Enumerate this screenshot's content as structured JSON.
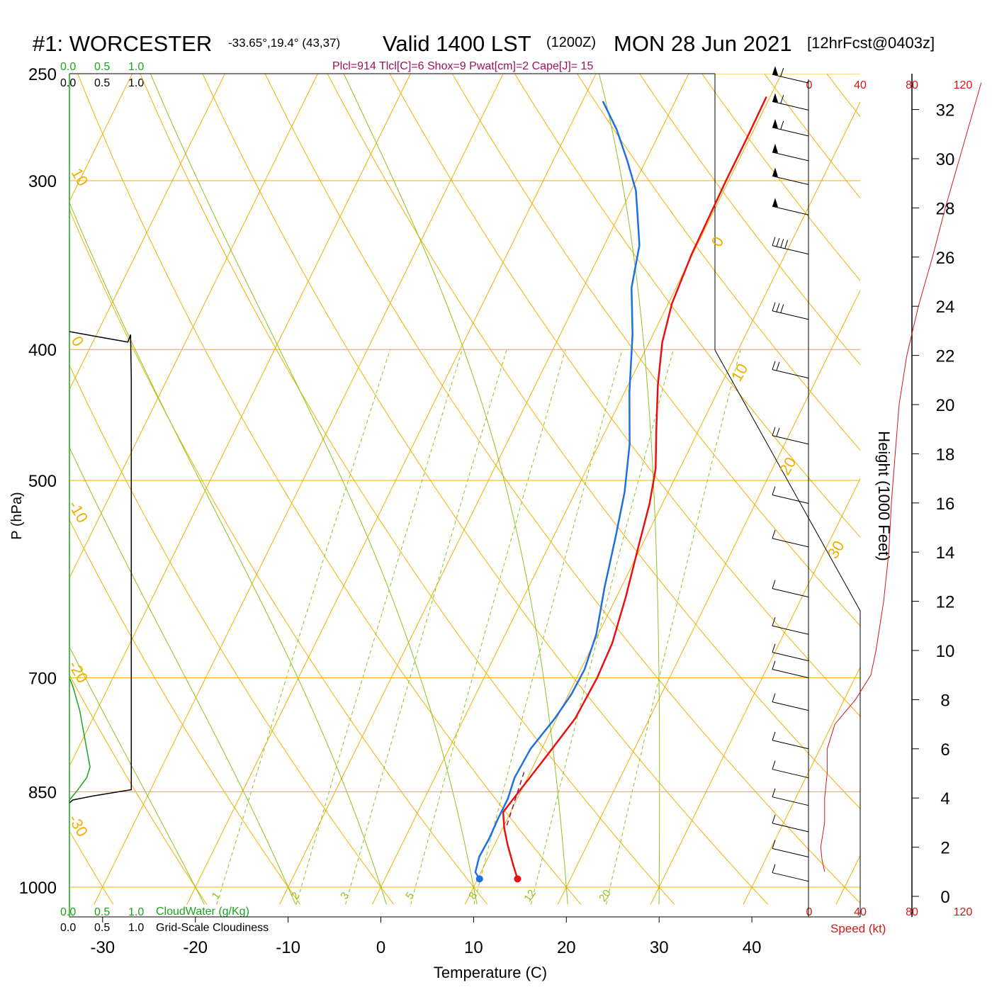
{
  "header": {
    "station": "#1: WORCESTER",
    "coords": "-33.65°,19.4° (43,37)",
    "valid": "Valid 1400 LST",
    "zulu": "(1200Z)",
    "date": "MON 28 Jun 2021",
    "forecast": "[12hrFcst@0403z]",
    "indices": "Plcl=914 Tlcl[C]=6 Shox=9 Pwat[cm]=2 Cape[J]= 15"
  },
  "colors": {
    "temperature": "#e81010",
    "dewpoint": "#1f6fe0",
    "isotherm": "#f0b000",
    "adiabat": "#8ec21c",
    "mixing_ratio": "#8ec21c",
    "cloud_water": "#19a519",
    "cloudiness": "#000000",
    "wind_speed": "#d01818",
    "parcel": "#8a1a5a",
    "indices_text": "#a0105a"
  },
  "chart_data": {
    "type": "line",
    "title": "#1: WORCESTER",
    "xlabel": "Temperature (C)",
    "ylabel": "P (hPa)",
    "y_scale": "log",
    "xlim": [
      -33,
      47
    ],
    "ylim": [
      1030,
      250
    ],
    "x_ticks": [
      -30,
      -20,
      -10,
      0,
      10,
      20,
      30,
      40
    ],
    "pressure_ticks": [
      1000,
      850,
      700,
      500,
      400,
      300,
      250
    ],
    "isotherm_labels": [
      {
        "t": 10,
        "text": "10"
      },
      {
        "t": 0,
        "text": "0"
      },
      {
        "t": -10,
        "text": "-10"
      },
      {
        "t": -20,
        "text": "-20"
      },
      {
        "t": -30,
        "text": "-30"
      },
      {
        "t": 0,
        "text": "0"
      },
      {
        "t": 10,
        "text": "10"
      },
      {
        "t": 20,
        "text": "20"
      },
      {
        "t": 30,
        "text": "30"
      }
    ],
    "mixing_ratio_lines": [
      1,
      2,
      3,
      5,
      8,
      12,
      20
    ],
    "series": [
      {
        "name": "Temperature",
        "points": [
          [
            14.3,
            986
          ],
          [
            13.2,
            965
          ],
          [
            11.4,
            930
          ],
          [
            10.2,
            905
          ],
          [
            9.2,
            880
          ],
          [
            9.6,
            860
          ],
          [
            10.9,
            800
          ],
          [
            12.0,
            750
          ],
          [
            12.2,
            700
          ],
          [
            12.0,
            660
          ],
          [
            11.0,
            610
          ],
          [
            9.7,
            560
          ],
          [
            8.6,
            520
          ],
          [
            7.4,
            490
          ],
          [
            5.5,
            460
          ],
          [
            3.2,
            425
          ],
          [
            1.4,
            395
          ],
          [
            0.4,
            370
          ],
          [
            -0.1,
            340
          ],
          [
            -0.3,
            300
          ],
          [
            -0.3,
            280
          ],
          [
            -0.4,
            260
          ]
        ]
      },
      {
        "name": "Dewpoint",
        "points": [
          [
            10.2,
            986
          ],
          [
            9.4,
            975
          ],
          [
            9.0,
            950
          ],
          [
            9.1,
            920
          ],
          [
            9.0,
            890
          ],
          [
            9.0,
            860
          ],
          [
            8.6,
            830
          ],
          [
            8.8,
            790
          ],
          [
            9.8,
            750
          ],
          [
            10.3,
            720
          ],
          [
            10.4,
            690
          ],
          [
            9.8,
            650
          ],
          [
            8.2,
            600
          ],
          [
            6.7,
            550
          ],
          [
            5.3,
            510
          ],
          [
            3.3,
            470
          ],
          [
            0.5,
            430
          ],
          [
            -2.2,
            390
          ],
          [
            -4.8,
            360
          ],
          [
            -6.2,
            335
          ],
          [
            -7.8,
            320
          ],
          [
            -9.5,
            305
          ],
          [
            -12.0,
            290
          ],
          [
            -14.8,
            275
          ],
          [
            -17.8,
            262
          ]
        ]
      }
    ],
    "parcel": [
      [
        10.3,
        900
      ],
      [
        9.3,
        820
      ]
    ],
    "surface_points": [
      {
        "series": "Temperature",
        "t": 14.3,
        "p": 986
      },
      {
        "series": "Dewpoint",
        "t": 10.2,
        "p": 986
      }
    ],
    "side_panel": {
      "cloud_water_label": "CloudWater (g/Kg)",
      "cloudiness_label": "Grid-Scale Cloudiness",
      "scale_ticks_green": [
        "0.0",
        "0.5",
        "1.0"
      ],
      "scale_ticks_black": [
        "0.0",
        "0.5",
        "1.0"
      ],
      "cloudiness": [
        [
          0,
          866
        ],
        [
          0.05,
          862
        ],
        [
          0.35,
          856
        ],
        [
          0.9,
          847
        ],
        [
          0.9,
          420
        ],
        [
          0.89,
          390
        ],
        [
          0.85,
          395
        ],
        [
          0,
          388
        ]
      ],
      "cloud_water": [
        [
          0,
          862
        ],
        [
          0.1,
          850
        ],
        [
          0.25,
          830
        ],
        [
          0.3,
          815
        ],
        [
          0.25,
          790
        ],
        [
          0.15,
          740
        ],
        [
          0.05,
          710
        ],
        [
          0,
          700
        ]
      ]
    },
    "wind": {
      "speed_label": "Speed (kt)",
      "speed_ticks": [
        "0",
        "40",
        "80",
        "120"
      ],
      "barbs_kt": [
        [
          254,
          65
        ],
        [
          266,
          60
        ],
        [
          278,
          60
        ],
        [
          290,
          55
        ],
        [
          302,
          55
        ],
        [
          318,
          50
        ],
        [
          340,
          45
        ],
        [
          380,
          35
        ],
        [
          420,
          25
        ],
        [
          470,
          20
        ],
        [
          520,
          15
        ],
        [
          560,
          15
        ],
        [
          610,
          10
        ],
        [
          650,
          10
        ],
        [
          680,
          10
        ],
        [
          700,
          10
        ],
        [
          740,
          10
        ],
        [
          790,
          10
        ],
        [
          830,
          10
        ],
        [
          870,
          10
        ],
        [
          910,
          10
        ],
        [
          950,
          10
        ],
        [
          990,
          10
        ]
      ]
    },
    "height": {
      "label": "Height (1000 Feet)",
      "ticks": [
        0,
        2,
        4,
        6,
        8,
        10,
        12,
        14,
        16,
        18,
        20,
        22,
        24,
        26,
        28,
        30,
        32
      ],
      "speed_profile": [
        [
          1,
          12
        ],
        [
          1.5,
          10
        ],
        [
          2,
          9
        ],
        [
          3,
          12
        ],
        [
          4,
          12
        ],
        [
          5,
          14
        ],
        [
          6,
          14
        ],
        [
          7,
          20
        ],
        [
          8,
          36
        ],
        [
          9,
          48
        ],
        [
          10,
          52
        ],
        [
          12,
          58
        ],
        [
          14,
          62
        ],
        [
          16,
          64
        ],
        [
          18,
          67
        ],
        [
          20,
          70
        ],
        [
          22,
          76
        ],
        [
          24,
          85
        ],
        [
          26,
          96
        ],
        [
          28,
          106
        ],
        [
          30,
          117
        ],
        [
          32,
          128
        ],
        [
          33.1,
          134
        ]
      ]
    }
  }
}
